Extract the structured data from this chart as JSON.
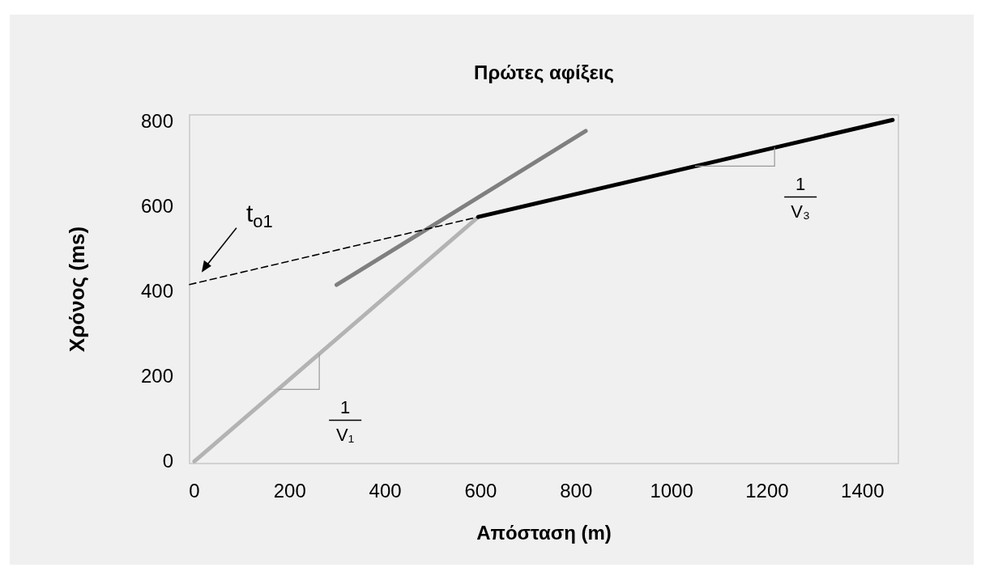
{
  "chart_data": {
    "type": "line",
    "title": "Πρώτες αφίξεις",
    "xlabel": "Απόσταση (m)",
    "ylabel": "Χρόνος (ms)",
    "xlim": [
      -10,
      1475
    ],
    "ylim": [
      -5,
      815
    ],
    "xticks": [
      0,
      200,
      400,
      600,
      800,
      1000,
      1200,
      1400
    ],
    "yticks": [
      0,
      200,
      400,
      600,
      800
    ],
    "grid": false,
    "marker": "none",
    "series": [
      {
        "color": "#b3b3b3",
        "x": [
          0,
          595
        ],
        "values": [
          0,
          575
        ]
      },
      {
        "color": "#7f7f7f",
        "x": [
          298,
          820
        ],
        "values": [
          415,
          777
        ]
      },
      {
        "color": "#000000",
        "x": [
          595,
          1463
        ],
        "values": [
          575,
          803
        ]
      },
      {
        "color": "#000000",
        "x": [
          -10,
          595
        ],
        "values": [
          416,
          575
        ],
        "line_style": "dashed"
      }
    ],
    "annotations": [
      "t$_{o1}$",
      "1",
      "V₁",
      "1",
      "V₃"
    ]
  }
}
